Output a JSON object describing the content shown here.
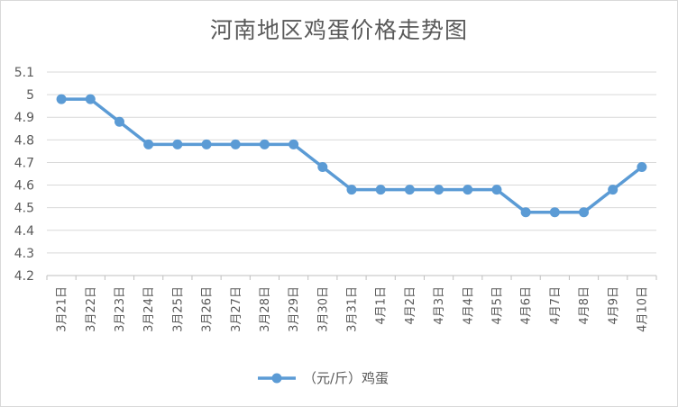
{
  "chart_data": {
    "type": "line",
    "title": "河南地区鸡蛋价格走势图",
    "xlabel": "",
    "ylabel": "",
    "categories": [
      "3月21日",
      "3月22日",
      "3月23日",
      "3月24日",
      "3月25日",
      "3月26日",
      "3月27日",
      "3月28日",
      "3月29日",
      "3月30日",
      "3月31日",
      "4月1日",
      "4月2日",
      "4月3日",
      "4月4日",
      "4月5日",
      "4月6日",
      "4月7日",
      "4月8日",
      "4月9日",
      "4月10日"
    ],
    "series": [
      {
        "name": "（元/斤）鸡蛋",
        "values": [
          4.98,
          4.98,
          4.88,
          4.78,
          4.78,
          4.78,
          4.78,
          4.78,
          4.78,
          4.68,
          4.58,
          4.58,
          4.58,
          4.58,
          4.58,
          4.58,
          4.48,
          4.48,
          4.48,
          4.58,
          4.68
        ]
      }
    ],
    "ylim": [
      4.2,
      5.1
    ],
    "yticks": [
      5.1,
      5,
      4.9,
      4.8,
      4.7,
      4.6,
      4.5,
      4.4,
      4.3,
      4.2
    ],
    "grid": true,
    "legend_position": "bottom",
    "colors": {
      "line": "#5b9bd5",
      "grid": "#d9d9d9",
      "axis": "#bfbfbf",
      "text": "#595959"
    }
  }
}
